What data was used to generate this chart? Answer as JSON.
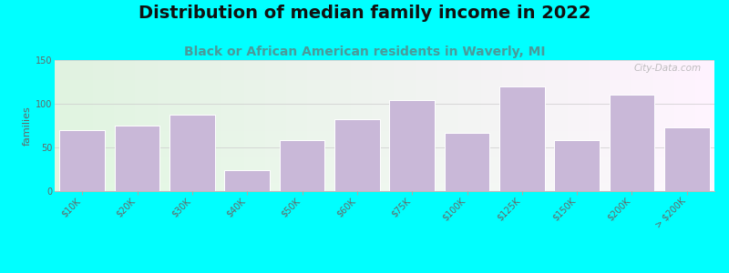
{
  "title": "Distribution of median family income in 2022",
  "subtitle": "Black or African American residents in Waverly, MI",
  "ylabel": "families",
  "background_color": "#00FFFF",
  "bar_color": "#c9b8d8",
  "bar_edge_color": "#ffffff",
  "categories": [
    "$10K",
    "$20K",
    "$30K",
    "$40K",
    "$50K",
    "$60K",
    "$75K",
    "$100K",
    "$125K",
    "$150K",
    "$200K",
    "> $200K"
  ],
  "values": [
    70,
    75,
    88,
    24,
    58,
    82,
    104,
    67,
    120,
    58,
    110,
    73
  ],
  "ylim": [
    0,
    150
  ],
  "yticks": [
    0,
    50,
    100,
    150
  ],
  "title_fontsize": 14,
  "subtitle_fontsize": 10,
  "ylabel_fontsize": 8,
  "tick_fontsize": 7,
  "watermark": "City-Data.com",
  "subtitle_color": "#4a9a9a",
  "title_color": "#111111",
  "tick_color": "#666666",
  "plot_bg_color_tl": "#e8f4e8",
  "plot_bg_color_br": "#f8f8f4"
}
